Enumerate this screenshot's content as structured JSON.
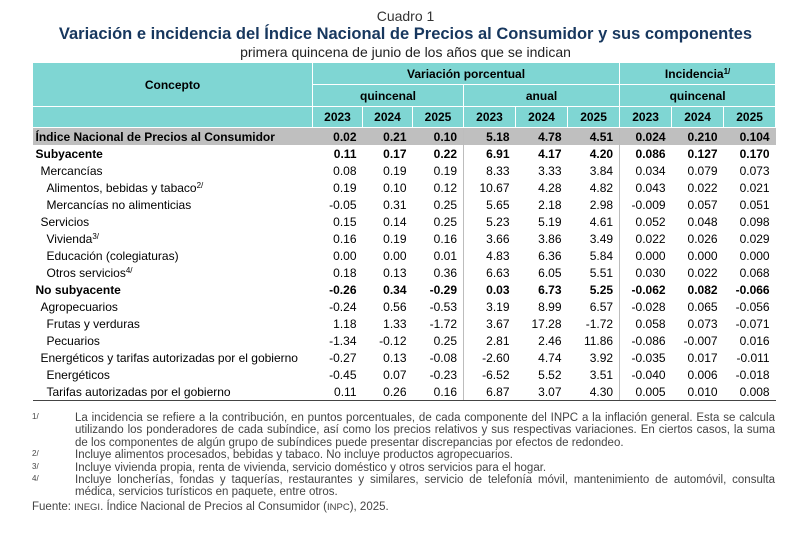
{
  "header": {
    "cuadro": "Cuadro 1",
    "title": "Variación e incidencia del Índice Nacional de Precios al Consumidor y sus componentes",
    "subtitle": "primera quincena de junio de los años que se indican"
  },
  "table": {
    "concept_header": "Concepto",
    "variation_header": "Variación porcentual",
    "incidence_header": "Incidencia",
    "incidence_sup": "1/",
    "quincenal": "quincenal",
    "anual": "anual",
    "years": [
      "2023",
      "2024",
      "2025",
      "2023",
      "2024",
      "2025",
      "2023",
      "2024",
      "2025"
    ],
    "rows": [
      {
        "label": "Índice Nacional de Precios al Consumidor",
        "sup": "",
        "style": "gray",
        "indent": 0,
        "values": [
          "0.02",
          "0.21",
          "0.10",
          "5.18",
          "4.78",
          "4.51",
          "0.024",
          "0.210",
          "0.104"
        ]
      },
      {
        "label": "Subyacente",
        "sup": "",
        "style": "bold",
        "indent": 0,
        "values": [
          "0.11",
          "0.17",
          "0.22",
          "6.91",
          "4.17",
          "4.20",
          "0.086",
          "0.127",
          "0.170"
        ]
      },
      {
        "label": "Mercancías",
        "sup": "",
        "style": "",
        "indent": 1,
        "values": [
          "0.08",
          "0.19",
          "0.19",
          "8.33",
          "3.33",
          "3.84",
          "0.034",
          "0.079",
          "0.073"
        ]
      },
      {
        "label": "Alimentos, bebidas y tabaco",
        "sup": "2/",
        "style": "",
        "indent": 2,
        "values": [
          "0.19",
          "0.10",
          "0.12",
          "10.67",
          "4.28",
          "4.82",
          "0.043",
          "0.022",
          "0.021"
        ]
      },
      {
        "label": "Mercancías no alimenticias",
        "sup": "",
        "style": "",
        "indent": 2,
        "values": [
          "-0.05",
          "0.31",
          "0.25",
          "5.65",
          "2.18",
          "2.98",
          "-0.009",
          "0.057",
          "0.051"
        ]
      },
      {
        "label": "Servicios",
        "sup": "",
        "style": "",
        "indent": 1,
        "values": [
          "0.15",
          "0.14",
          "0.25",
          "5.23",
          "5.19",
          "4.61",
          "0.052",
          "0.048",
          "0.098"
        ]
      },
      {
        "label": "Vivienda",
        "sup": "3/",
        "style": "",
        "indent": 2,
        "values": [
          "0.16",
          "0.19",
          "0.16",
          "3.66",
          "3.86",
          "3.49",
          "0.022",
          "0.026",
          "0.029"
        ]
      },
      {
        "label": "Educación (colegiaturas)",
        "sup": "",
        "style": "",
        "indent": 2,
        "values": [
          "0.00",
          "0.00",
          "0.01",
          "4.83",
          "6.36",
          "5.84",
          "0.000",
          "0.000",
          "0.000"
        ]
      },
      {
        "label": "Otros servicios",
        "sup": "4/",
        "style": "",
        "indent": 2,
        "values": [
          "0.18",
          "0.13",
          "0.36",
          "6.63",
          "6.05",
          "5.51",
          "0.030",
          "0.022",
          "0.068"
        ]
      },
      {
        "label": "No subyacente",
        "sup": "",
        "style": "bold",
        "indent": 0,
        "values": [
          "-0.26",
          "0.34",
          "-0.29",
          "0.03",
          "6.73",
          "5.25",
          "-0.062",
          "0.082",
          "-0.066"
        ]
      },
      {
        "label": "Agropecuarios",
        "sup": "",
        "style": "",
        "indent": 1,
        "values": [
          "-0.24",
          "0.56",
          "-0.53",
          "3.19",
          "8.99",
          "6.57",
          "-0.028",
          "0.065",
          "-0.056"
        ]
      },
      {
        "label": "Frutas y verduras",
        "sup": "",
        "style": "",
        "indent": 2,
        "values": [
          "1.18",
          "1.33",
          "-1.72",
          "3.67",
          "17.28",
          "-1.72",
          "0.058",
          "0.073",
          "-0.071"
        ]
      },
      {
        "label": "Pecuarios",
        "sup": "",
        "style": "",
        "indent": 2,
        "values": [
          "-1.34",
          "-0.12",
          "0.25",
          "2.81",
          "2.46",
          "11.86",
          "-0.086",
          "-0.007",
          "0.016"
        ]
      },
      {
        "label": "Energéticos y tarifas autorizadas por el gobierno",
        "sup": "",
        "style": "",
        "indent": 1,
        "values": [
          "-0.27",
          "0.13",
          "-0.08",
          "-2.60",
          "4.74",
          "3.92",
          "-0.035",
          "0.017",
          "-0.011"
        ]
      },
      {
        "label": "Energéticos",
        "sup": "",
        "style": "",
        "indent": 2,
        "values": [
          "-0.45",
          "0.07",
          "-0.23",
          "-6.52",
          "5.52",
          "3.51",
          "-0.040",
          "0.006",
          "-0.018"
        ]
      },
      {
        "label": "Tarifas autorizadas por el gobierno",
        "sup": "",
        "style": "last",
        "indent": 2,
        "values": [
          "0.11",
          "0.26",
          "0.16",
          "6.87",
          "3.07",
          "4.30",
          "0.005",
          "0.010",
          "0.008"
        ]
      }
    ]
  },
  "notes": [
    {
      "mark": "1/",
      "text": "La incidencia se refiere a la contribución, en puntos porcentuales, de cada componente del INPC a la inflación general. Esta se calcula utilizando los ponderadores de cada subíndice, así como los precios relativos y sus respectivas variaciones. En ciertos casos, la suma de los componentes de algún grupo de subíndices puede presentar discrepancias por efectos de redondeo."
    },
    {
      "mark": "2/",
      "text": "Incluye alimentos procesados, bebidas y tabaco. No incluye productos agropecuarios."
    },
    {
      "mark": "3/",
      "text": "Incluye vivienda propia, renta de vivienda, servicio doméstico y otros servicios para el hogar."
    },
    {
      "mark": "4/",
      "text": "Incluye loncherías, fondas y taquerías, restaurantes y similares, servicio de telefonía móvil, mantenimiento de automóvil, consulta médica, servicios turísticos en paquete, entre otros."
    }
  ],
  "source": {
    "prefix": "Fuente: ",
    "org": "INEGI",
    "mid": ". Índice Nacional de Precios al Consumidor (",
    "abbr": "INPC",
    "suffix": "), 2025."
  }
}
